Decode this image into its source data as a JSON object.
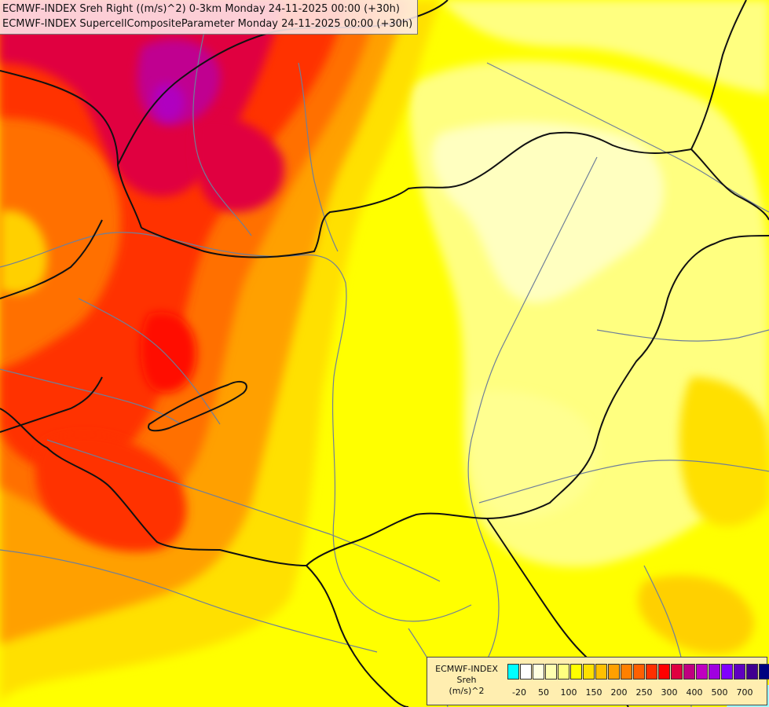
{
  "header": {
    "line1": "ECMWF-INDEX Sreh Right ((m/s)^2) 0-3km Monday 24-11-2025 00:00 (+30h)",
    "line2": "ECMWF-INDEX SupercellCompositeParameter Monday 24-11-2025 00:00 (+30h)"
  },
  "legend": {
    "title_line1": "ECMWF-INDEX",
    "title_line2": "Sreh",
    "title_line3": "(m/s)^2",
    "colors": [
      "#00ffff",
      "#ffffff",
      "#ffffe0",
      "#ffffb0",
      "#ffff80",
      "#ffff00",
      "#ffe000",
      "#ffc000",
      "#ffa000",
      "#ff8000",
      "#ff6000",
      "#ff3000",
      "#ff0000",
      "#e00040",
      "#c00080",
      "#c000c0",
      "#a000e0",
      "#8000ff",
      "#6000c0",
      "#400090",
      "#000080"
    ],
    "ticks": [
      "-20",
      "50",
      "100",
      "150",
      "200",
      "250",
      "300",
      "400",
      "500",
      "700"
    ]
  },
  "colors": {
    "border": "#111111",
    "river": "#6f7f99",
    "background": "#ffff00"
  }
}
